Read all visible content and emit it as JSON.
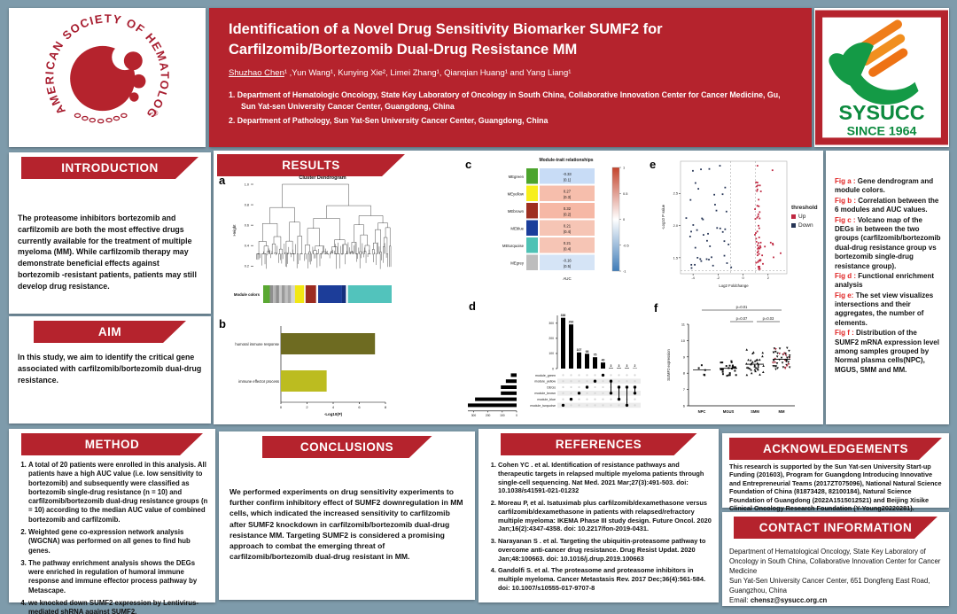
{
  "colors": {
    "background": "#7e9bab",
    "accent_red": "#b5232d",
    "ash_red": "#a81e30",
    "logo_green": "#0c8a3e",
    "logo_orange": "#ef7d1a",
    "up_red": "#bf2740",
    "down_navy": "#253455"
  },
  "header": {
    "title_line1": "Identification of a Novel Drug Sensitivity Biomarker SUMF2 for",
    "title_line2": "Carfilzomib/Bortezomib Dual-Drug Resistance MM",
    "author_first": "Shuzhao Chen",
    "authors_rest": "¹ ,Yun Wang¹, Kunying Xie², Limei Zhang¹, Qianqian Huang¹ and Yang Liang¹",
    "affiliations": [
      "1. Department of Hematologic Oncology, State Key Laboratory of Oncology in South China, Collaborative Innovation Center for Cancer Medicine, Gu, Sun Yat-sen University Cancer Center, Guangdong, China",
      "2. Department of Pathology, Sun Yat-Sen University Cancer Center, Guangdong, China"
    ],
    "ash_logo_text": "AMERICAN SOCIETY OF HEMATOLOGY",
    "ash_registered": "®",
    "sysucc_name": "SYSUCC",
    "sysucc_since": "SINCE 1964"
  },
  "sections": {
    "introduction": {
      "title": "INTRODUCTION",
      "body": "The proteasome inhibitors bortezomib and carfilzomib are both the most effective drugs currently available for the treatment of multiple myeloma (MM). While carfilzomib therapy may demonstrate beneficial effects against bortezomib -resistant patients, patients may still develop drug resistance."
    },
    "aim": {
      "title": "AIM",
      "body": "In this study, we aim to identify the critical gene associated with carfilzomib/bortezomib dual-drug resistance."
    },
    "results": {
      "title": "RESULTS"
    },
    "method": {
      "title": "METHOD",
      "items": [
        "A total of 20 patients were enrolled in this analysis. All patients have a high AUC value (i.e. low sensitivity to bortezomib) and subsequently were classified as bortezomib single-drug resistance (n = 10) and carfilzomib/bortezomib dual-drug resistance groups (n = 10) according to the median AUC value of combined bortezomib and carfilzomib.",
        "Weighted gene co-expression network analysis (WGCNA) was performed on all genes to find hub genes.",
        "The pathway enrichment analysis shows the DEGs were enriched in regulation of humoral immune response and immune effector process pathway by Metascape.",
        "we knocked down SUMF2 expression by Lentivirus-mediated shRNA against SUMF2."
      ]
    },
    "conclusions": {
      "title": "CONCLUSIONS",
      "body": "We performed experiments on drug sensitivity experiments to further confirm inhibitory effect of SUMF2 downregulation in MM cells, which indicated the increased sensitivity to carfilzomib after SUMF2 knockdown in carfilzomib/bortezomib dual-drug resistance MM. Targeting SUMF2 is considered a promising approach to combat the emerging threat of carfilzomib/bortezomib dual-drug resistant in MM."
    },
    "references": {
      "title": "REFERENCES",
      "items": [
        "Cohen YC . et al. Identification of resistance pathways and therapeutic targets in relapsed multiple myeloma patients through single-cell sequencing. Nat Med. 2021 Mar;27(3):491-503. doi: 10.1038/s41591-021-01232",
        "Moreau P, et al. Isatuximab plus carfilzomib/dexamethasone versus carfilzomib/dexamethasone in patients with relapsed/refractory multiple myeloma: IKEMA Phase III study design. Future Oncol. 2020 Jan;16(2):4347-4358. doi: 10.2217/fon-2019-0431.",
        "Narayanan S . et al. Targeting the ubiquitin-proteasome pathway to overcome anti-cancer drug resistance. Drug Resist Updat. 2020 Jan;48:100663. doi: 10.1016/j.drup.2019.100663",
        "Gandolfi S. et al. The proteasome and proteasome inhibitors in multiple myeloma. Cancer Metastasis Rev. 2017 Dec;36(4):561-584. doi: 10.1007/s10555-017-9707-8"
      ]
    },
    "acknowledgements": {
      "title": "ACKNOWLEDGEMENTS",
      "body": "This research is supported by the Sun Yat-sen University Start-up Funding (201603), Program for Guangdong Introducing Innovative and Entrepreneurial Teams (2017ZT075096), National Natural Science Foundation of China (81873428, 82100184), Natural Science Foundation of Guangdong (2022A1515012521) and Beijing Xisike Clinical Oncology Research Foundation (Y-Young20220281)."
    },
    "contact": {
      "title": "CONTACT INFORMATION",
      "lines": [
        "Department of Hematological Oncology, State Key Laboratory of Oncology in South China, Collaborative Innovation Center for Cancer Medicine",
        "Sun Yat-Sen University Cancer Center, 651 Dongfeng East Road, Guangzhou, China"
      ],
      "email_label": "Email:",
      "email": "chensz@sysucc.org.cn"
    }
  },
  "figure_legends": [
    {
      "label": "Fig a :",
      "text": "Gene dendrogram and module colors."
    },
    {
      "label": "Fig b :",
      "text": "Correlation between the 6 modules and AUC values."
    },
    {
      "label": "Fig c :",
      "text": "Volcano map of the DEGs in between the two groups (carfilzomib/bortezomib dual-drug resistance group  vs bortezomib single-drug resistance group)."
    },
    {
      "label": "Fig d :",
      "text": "Functional enrichment analysis"
    },
    {
      "label": "Fig e:",
      "text": "The set view visualizes intersections and their aggregates, the number of elements."
    },
    {
      "label": "Fig f :",
      "text": "Distribution of the SUMF2 mRNA expression level among samples grouped by Normal plasma cells(NPC), MGUS, SMM and MM."
    }
  ],
  "chart_data": [
    {
      "id": "a",
      "type": "dendrogram",
      "title": "Cluster Dendrogram",
      "ylabel": "Height",
      "yticks": [
        0.2,
        0.4,
        0.6,
        0.8,
        1.0
      ],
      "module_colors_label": "Module colors",
      "module_segments": [
        {
          "color": "#5aa832",
          "w": 5
        },
        {
          "color": "#8f8f8f",
          "w": 2.5
        },
        {
          "color": "#b5b5b5",
          "w": 2
        },
        {
          "color": "#8f8f8f",
          "w": 2.5
        },
        {
          "color": "#c9c9c9",
          "w": 2
        },
        {
          "color": "#9a9a9a",
          "w": 2.5
        },
        {
          "color": "#bfbfbf",
          "w": 2
        },
        {
          "color": "#a5a5a5",
          "w": 2.5
        },
        {
          "color": "#d4d4d4",
          "w": 3
        },
        {
          "color": "#f2e713",
          "w": 7
        },
        {
          "color": "#ffffff",
          "w": 1
        },
        {
          "color": "#9c2b20",
          "w": 8
        },
        {
          "color": "#ffffff",
          "w": 1.5
        },
        {
          "color": "#1c3d99",
          "w": 18
        },
        {
          "color": "#15307d",
          "w": 3
        },
        {
          "color": "#ffffff",
          "w": 1.5
        },
        {
          "color": "#52c3bc",
          "w": 33
        }
      ]
    },
    {
      "id": "b",
      "type": "bar",
      "orientation": "horizontal",
      "categories": [
        "humoral immune response",
        "immune effector process"
      ],
      "values": [
        7.2,
        3.5
      ],
      "colors": [
        "#6e6b21",
        "#bcbc20"
      ],
      "xlabel": "-Log10(P)",
      "xticks": [
        0,
        2,
        4,
        6,
        8
      ],
      "xlim": [
        0,
        8
      ]
    },
    {
      "id": "c",
      "type": "heatmap",
      "title": "Module-trait relationships",
      "rows": [
        "MEgreen",
        "MEyellow",
        "MEbrown",
        "MEblue",
        "MEturquoise",
        "MEgrey"
      ],
      "row_colors": [
        "#4ca42d",
        "#f7ef1c",
        "#9e2f21",
        "#1b3e9b",
        "#4fc2b5",
        "#bdbdbd"
      ],
      "column": "AUC",
      "values": [
        -0.33,
        0.27,
        0.32,
        0.21,
        0.21,
        -0.16
      ],
      "p_values": [
        "(0.1)",
        "(0.3)",
        "(0.2)",
        "(0.4)",
        "(0.4)",
        "(0.5)"
      ],
      "colorbar_ticks": [
        1,
        0.5,
        0,
        -0.5,
        -1
      ]
    },
    {
      "id": "d",
      "type": "upset",
      "intersection_sizes": [
        336,
        292,
        107,
        98,
        75,
        40,
        3,
        3,
        3,
        2
      ],
      "yticks": [
        0,
        100,
        200,
        300
      ],
      "sets": [
        "module_green",
        "module_yellow",
        "DEGs",
        "module_brown",
        "module_blue",
        "module_turquoise"
      ],
      "set_sizes": [
        40,
        75,
        110,
        110,
        290,
        340
      ],
      "size_axis_ticks": [
        300,
        200,
        100,
        0
      ],
      "memberships": [
        [
          "module_turquoise"
        ],
        [
          "module_blue"
        ],
        [
          "module_brown"
        ],
        [
          "DEGs"
        ],
        [
          "module_yellow"
        ],
        [
          "module_green"
        ],
        [
          "module_yellow",
          "module_brown"
        ],
        [
          "DEGs",
          "module_blue"
        ],
        [
          "DEGs",
          "module_turquoise"
        ],
        [
          "DEGs",
          "module_brown"
        ]
      ]
    },
    {
      "id": "e",
      "type": "scatter",
      "subtype": "volcano",
      "xlabel": "Log2 Foldchange",
      "ylabel": "-Log10 P value",
      "xticks": [
        -4,
        -2,
        0,
        2
      ],
      "yticks": [
        1.5,
        2.0,
        2.5
      ],
      "xlim": [
        -5,
        3.5
      ],
      "ylim": [
        1.25,
        3.0
      ],
      "legend_title": "threshold",
      "legend": [
        {
          "label": "Up",
          "color": "#bf2740"
        },
        {
          "label": "Down",
          "color": "#253455"
        }
      ],
      "thresholds": {
        "x": [
          -1,
          1
        ],
        "y": 1.3
      }
    },
    {
      "id": "f",
      "type": "scatter",
      "subtype": "dotplot",
      "ylabel": "SUMF2 expression",
      "ylim": [
        6,
        11
      ],
      "yticks": [
        6,
        7,
        8,
        9,
        10,
        11
      ],
      "categories": [
        "NPC",
        "MGUS",
        "SMM",
        "MM"
      ],
      "group_means": [
        8.2,
        8.3,
        8.55,
        8.85
      ],
      "group_counts": [
        6,
        26,
        34,
        46
      ],
      "annotations": [
        {
          "text": "p=0.01",
          "from": "NPC",
          "to": "MM"
        },
        {
          "text": "p=0.07",
          "from": "MGUS",
          "to": "SMM"
        },
        {
          "text": "p=0.03",
          "from": "SMM",
          "to": "MM"
        }
      ]
    }
  ]
}
